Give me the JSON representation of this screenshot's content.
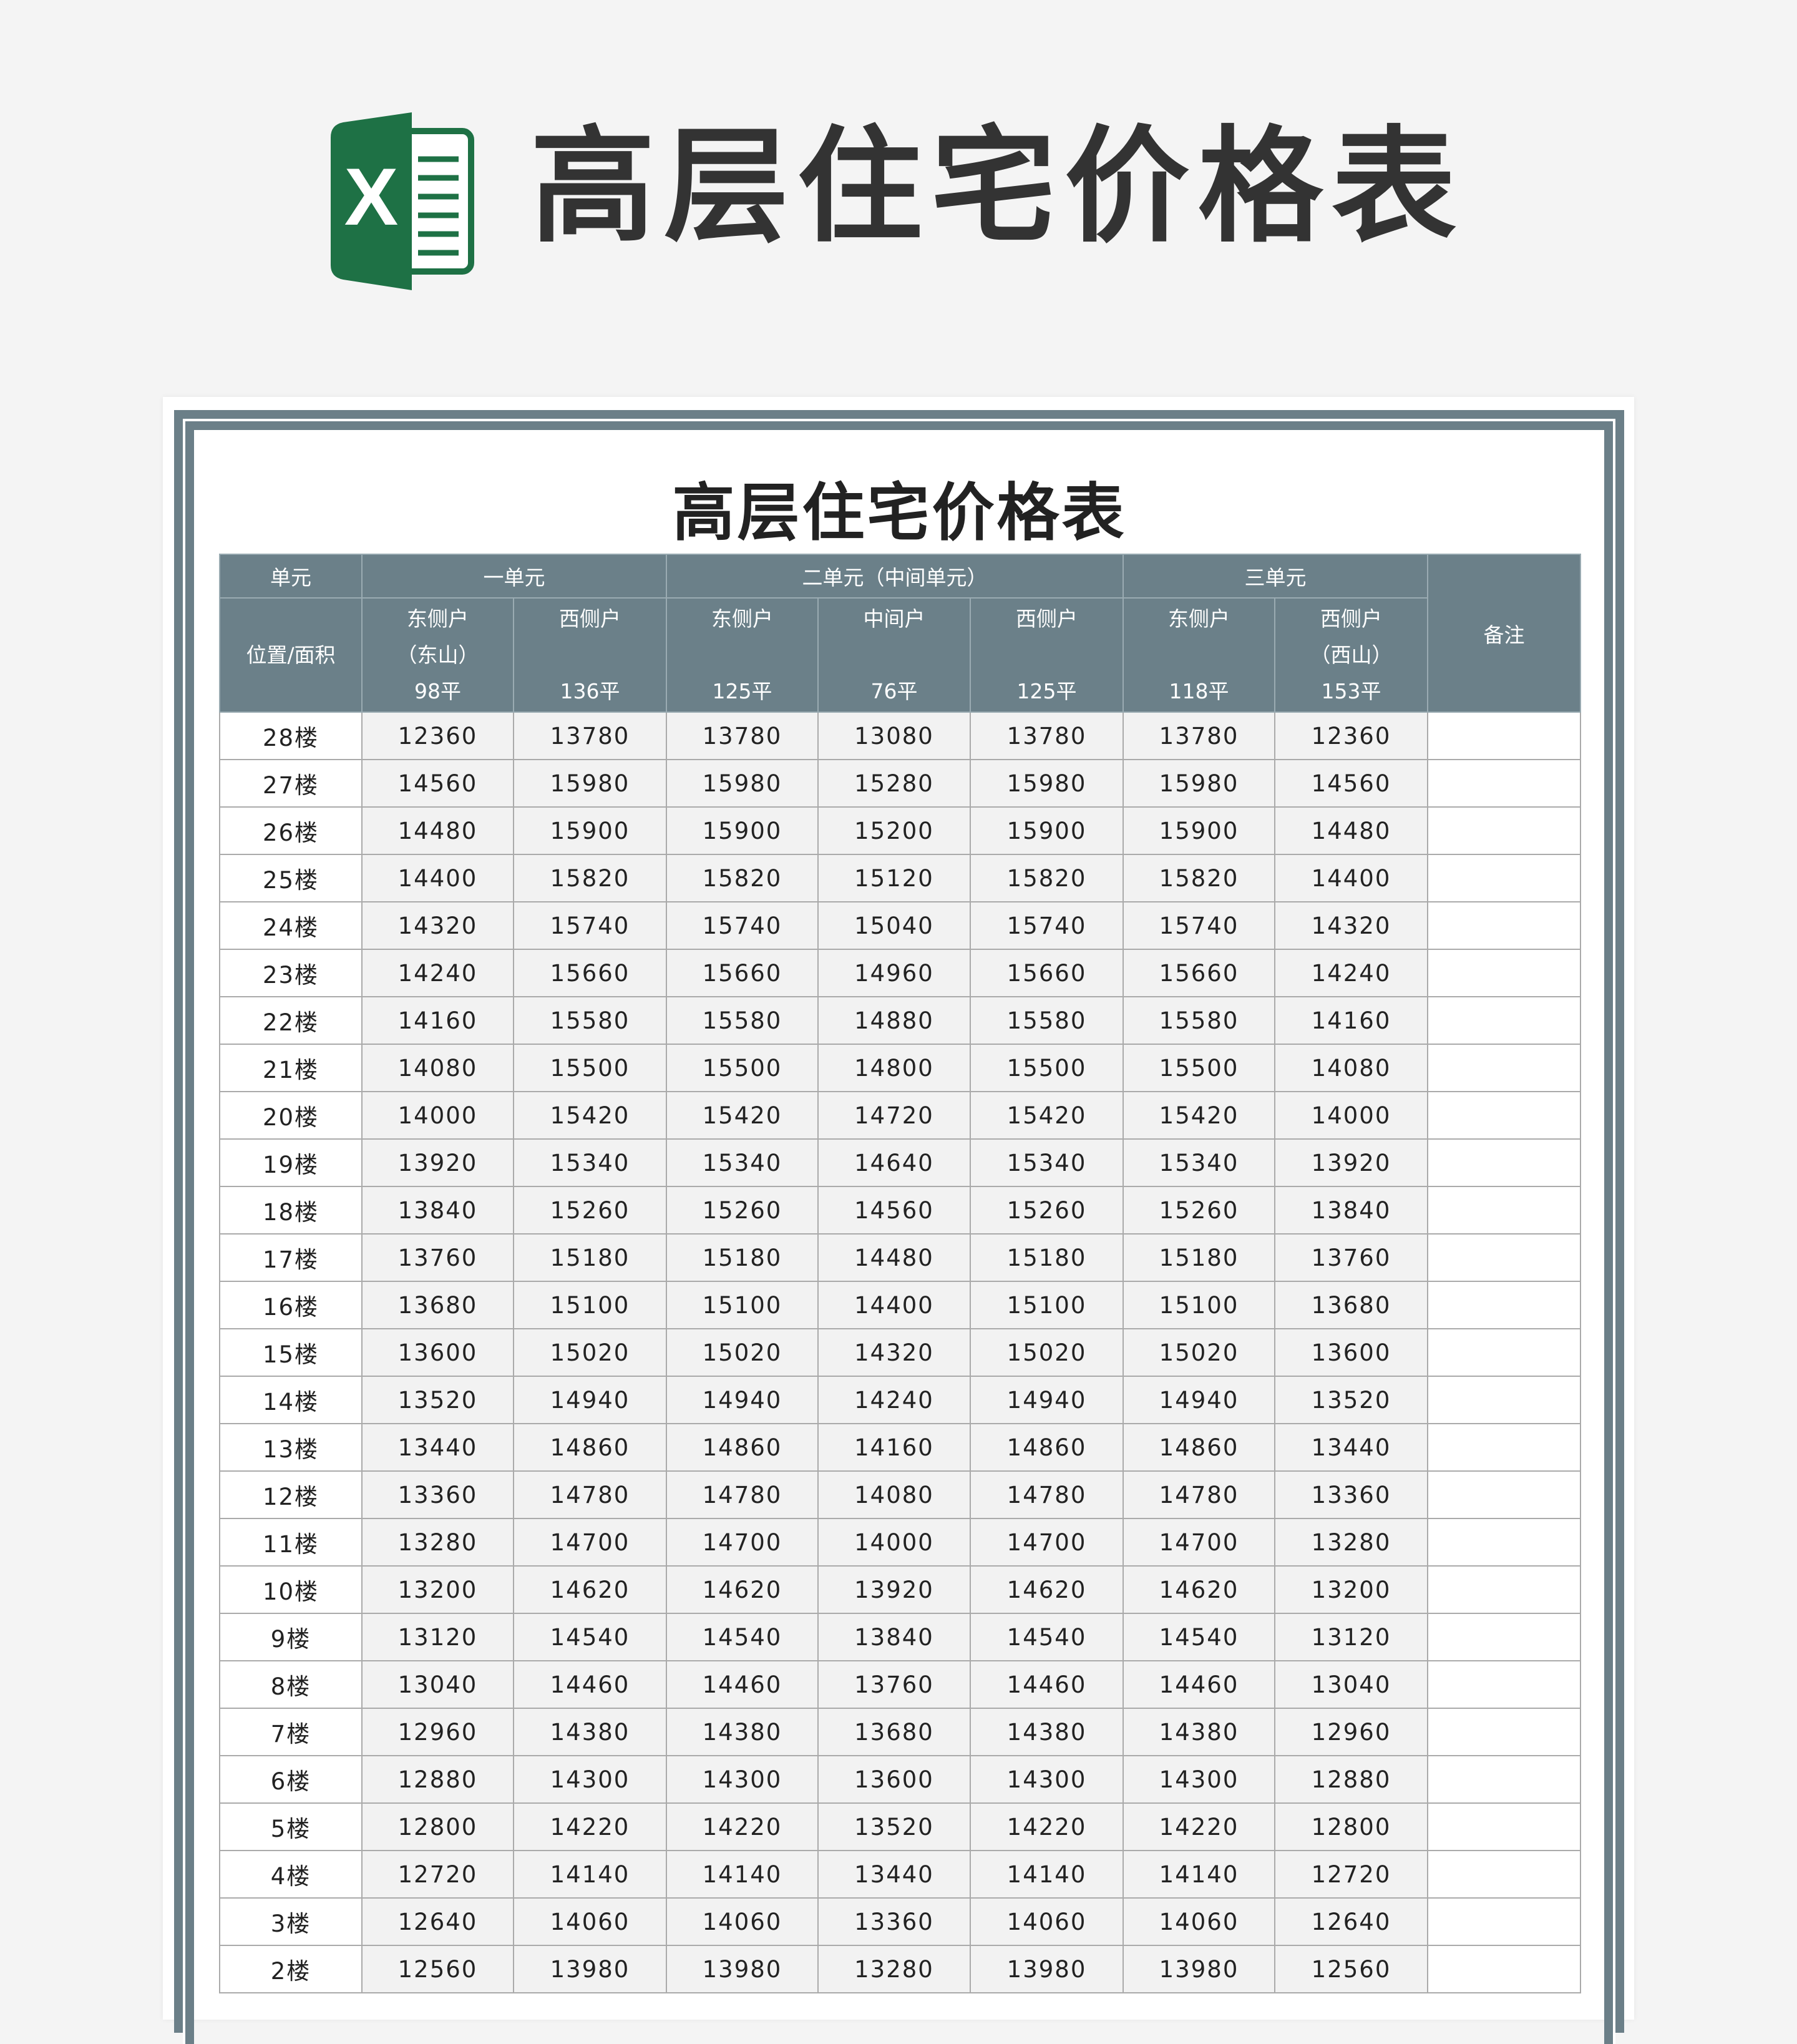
{
  "page_title": "高层住宅价格表",
  "logo": {
    "name": "excel-icon",
    "letter": "X",
    "color": "#1e7145"
  },
  "table": {
    "title": "高层住宅价格表",
    "header_color": "#6b8089",
    "header_row1": {
      "unit_label": "单元",
      "unit1": "一单元",
      "unit2": "二单元（中间单元）",
      "unit3": "三单元",
      "note": "备注"
    },
    "position_label": "位置/面积",
    "columns": [
      {
        "name": "东侧户",
        "sub": "（东山）",
        "area": "98平"
      },
      {
        "name": "西侧户",
        "sub": "",
        "area": "136平"
      },
      {
        "name": "东侧户",
        "sub": "",
        "area": "125平"
      },
      {
        "name": "中间户",
        "sub": "",
        "area": "76平"
      },
      {
        "name": "西侧户",
        "sub": "",
        "area": "125平"
      },
      {
        "name": "东侧户",
        "sub": "",
        "area": "118平"
      },
      {
        "name": "西侧户",
        "sub": "（西山）",
        "area": "153平"
      }
    ],
    "rows": [
      {
        "floor": "28楼",
        "values": [
          "12360",
          "13780",
          "13780",
          "13080",
          "13780",
          "13780",
          "12360"
        ]
      },
      {
        "floor": "27楼",
        "values": [
          "14560",
          "15980",
          "15980",
          "15280",
          "15980",
          "15980",
          "14560"
        ]
      },
      {
        "floor": "26楼",
        "values": [
          "14480",
          "15900",
          "15900",
          "15200",
          "15900",
          "15900",
          "14480"
        ]
      },
      {
        "floor": "25楼",
        "values": [
          "14400",
          "15820",
          "15820",
          "15120",
          "15820",
          "15820",
          "14400"
        ]
      },
      {
        "floor": "24楼",
        "values": [
          "14320",
          "15740",
          "15740",
          "15040",
          "15740",
          "15740",
          "14320"
        ]
      },
      {
        "floor": "23楼",
        "values": [
          "14240",
          "15660",
          "15660",
          "14960",
          "15660",
          "15660",
          "14240"
        ]
      },
      {
        "floor": "22楼",
        "values": [
          "14160",
          "15580",
          "15580",
          "14880",
          "15580",
          "15580",
          "14160"
        ]
      },
      {
        "floor": "21楼",
        "values": [
          "14080",
          "15500",
          "15500",
          "14800",
          "15500",
          "15500",
          "14080"
        ]
      },
      {
        "floor": "20楼",
        "values": [
          "14000",
          "15420",
          "15420",
          "14720",
          "15420",
          "15420",
          "14000"
        ]
      },
      {
        "floor": "19楼",
        "values": [
          "13920",
          "15340",
          "15340",
          "14640",
          "15340",
          "15340",
          "13920"
        ]
      },
      {
        "floor": "18楼",
        "values": [
          "13840",
          "15260",
          "15260",
          "14560",
          "15260",
          "15260",
          "13840"
        ]
      },
      {
        "floor": "17楼",
        "values": [
          "13760",
          "15180",
          "15180",
          "14480",
          "15180",
          "15180",
          "13760"
        ]
      },
      {
        "floor": "16楼",
        "values": [
          "13680",
          "15100",
          "15100",
          "14400",
          "15100",
          "15100",
          "13680"
        ]
      },
      {
        "floor": "15楼",
        "values": [
          "13600",
          "15020",
          "15020",
          "14320",
          "15020",
          "15020",
          "13600"
        ]
      },
      {
        "floor": "14楼",
        "values": [
          "13520",
          "14940",
          "14940",
          "14240",
          "14940",
          "14940",
          "13520"
        ]
      },
      {
        "floor": "13楼",
        "values": [
          "13440",
          "14860",
          "14860",
          "14160",
          "14860",
          "14860",
          "13440"
        ]
      },
      {
        "floor": "12楼",
        "values": [
          "13360",
          "14780",
          "14780",
          "14080",
          "14780",
          "14780",
          "13360"
        ]
      },
      {
        "floor": "11楼",
        "values": [
          "13280",
          "14700",
          "14700",
          "14000",
          "14700",
          "14700",
          "13280"
        ]
      },
      {
        "floor": "10楼",
        "values": [
          "13200",
          "14620",
          "14620",
          "13920",
          "14620",
          "14620",
          "13200"
        ]
      },
      {
        "floor": "9楼",
        "values": [
          "13120",
          "14540",
          "14540",
          "13840",
          "14540",
          "14540",
          "13120"
        ]
      },
      {
        "floor": "8楼",
        "values": [
          "13040",
          "14460",
          "14460",
          "13760",
          "14460",
          "14460",
          "13040"
        ]
      },
      {
        "floor": "7楼",
        "values": [
          "12960",
          "14380",
          "14380",
          "13680",
          "14380",
          "14380",
          "12960"
        ]
      },
      {
        "floor": "6楼",
        "values": [
          "12880",
          "14300",
          "14300",
          "13600",
          "14300",
          "14300",
          "12880"
        ]
      },
      {
        "floor": "5楼",
        "values": [
          "12800",
          "14220",
          "14220",
          "13520",
          "14220",
          "14220",
          "12800"
        ]
      },
      {
        "floor": "4楼",
        "values": [
          "12720",
          "14140",
          "14140",
          "13440",
          "14140",
          "14140",
          "12720"
        ]
      },
      {
        "floor": "3楼",
        "values": [
          "12640",
          "14060",
          "14060",
          "13360",
          "14060",
          "14060",
          "12640"
        ]
      },
      {
        "floor": "2楼",
        "values": [
          "12560",
          "13980",
          "13980",
          "13280",
          "13980",
          "13980",
          "12560"
        ]
      }
    ]
  }
}
